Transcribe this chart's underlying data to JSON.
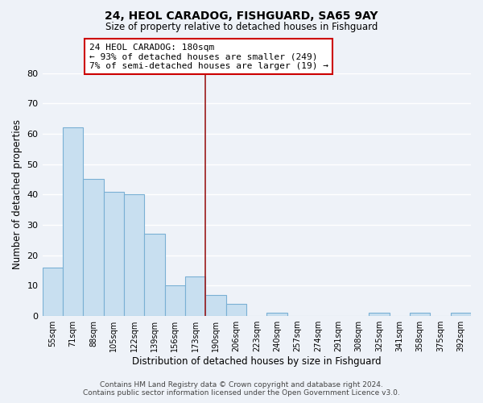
{
  "title": "24, HEOL CARADOG, FISHGUARD, SA65 9AY",
  "subtitle": "Size of property relative to detached houses in Fishguard",
  "xlabel": "Distribution of detached houses by size in Fishguard",
  "ylabel": "Number of detached properties",
  "bar_labels": [
    "55sqm",
    "71sqm",
    "88sqm",
    "105sqm",
    "122sqm",
    "139sqm",
    "156sqm",
    "173sqm",
    "190sqm",
    "206sqm",
    "223sqm",
    "240sqm",
    "257sqm",
    "274sqm",
    "291sqm",
    "308sqm",
    "325sqm",
    "341sqm",
    "358sqm",
    "375sqm",
    "392sqm"
  ],
  "bar_values": [
    16,
    62,
    45,
    41,
    40,
    27,
    10,
    13,
    7,
    4,
    0,
    1,
    0,
    0,
    0,
    0,
    1,
    0,
    1,
    0,
    1
  ],
  "bar_color": "#c8dff0",
  "bar_edge_color": "#7ab0d4",
  "property_line_x": 7.5,
  "annotation_title": "24 HEOL CARADOG: 180sqm",
  "annotation_line1": "← 93% of detached houses are smaller (249)",
  "annotation_line2": "7% of semi-detached houses are larger (19) →",
  "annotation_box_color": "#ffffff",
  "annotation_box_edge": "#cc0000",
  "vline_color": "#9b1a1a",
  "ylim": [
    0,
    80
  ],
  "yticks": [
    0,
    10,
    20,
    30,
    40,
    50,
    60,
    70,
    80
  ],
  "background_color": "#eef2f8",
  "grid_color": "#ffffff",
  "footer_line1": "Contains HM Land Registry data © Crown copyright and database right 2024.",
  "footer_line2": "Contains public sector information licensed under the Open Government Licence v3.0."
}
